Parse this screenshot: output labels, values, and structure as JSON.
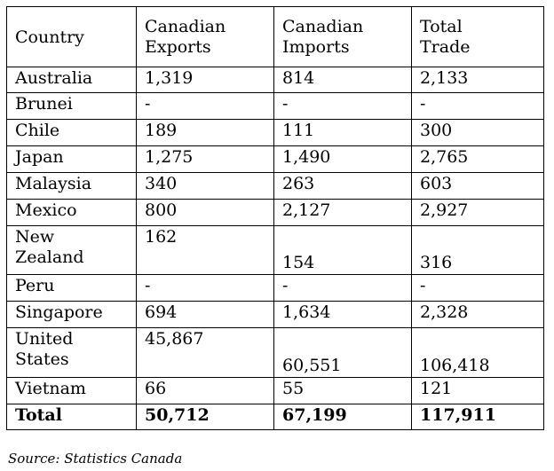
{
  "table": {
    "headers": {
      "country": "Country",
      "exports": [
        "Canadian",
        "Exports"
      ],
      "imports": [
        "Canadian",
        "Imports"
      ],
      "total": [
        "Total",
        "Trade"
      ]
    },
    "rows": [
      {
        "country": [
          "Australia"
        ],
        "exports": "1,319",
        "imports": "814",
        "total": "2,133"
      },
      {
        "country": [
          "Brunei"
        ],
        "exports": "-",
        "imports": "-",
        "total": "-"
      },
      {
        "country": [
          "Chile"
        ],
        "exports": "189",
        "imports": "111",
        "total": "300"
      },
      {
        "country": [
          "Japan"
        ],
        "exports": "1,275",
        "imports": "1,490",
        "total": "2,765"
      },
      {
        "country": [
          "Malaysia"
        ],
        "exports": "340",
        "imports": "263",
        "total": "603"
      },
      {
        "country": [
          "Mexico"
        ],
        "exports": "800",
        "imports": "2,127",
        "total": "2,927"
      },
      {
        "country": [
          "New",
          "Zealand"
        ],
        "exports": "162",
        "imports": "154",
        "total": "316"
      },
      {
        "country": [
          "Peru"
        ],
        "exports": "-",
        "imports": "-",
        "total": "-"
      },
      {
        "country": [
          "Singapore"
        ],
        "exports": "694",
        "imports": "1,634",
        "total": "2,328"
      },
      {
        "country": [
          "United",
          "States"
        ],
        "exports": "45,867",
        "imports": "60,551",
        "total": "106,418"
      },
      {
        "country": [
          "Vietnam"
        ],
        "exports": "66",
        "imports": "55",
        "total": "121"
      }
    ],
    "total_row": {
      "label": "Total",
      "exports": "50,712",
      "imports": "67,199",
      "total": "117,911"
    }
  },
  "source": "Source: Statistics Canada"
}
